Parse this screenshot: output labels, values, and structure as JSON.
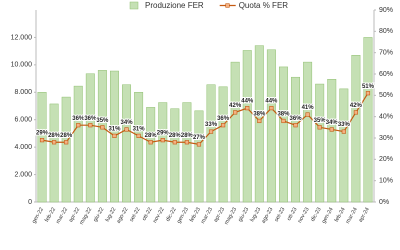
{
  "chart_data": {
    "type": "bar-line",
    "categories": [
      "gen-22",
      "feb-22",
      "mar-22",
      "apr-22",
      "mag-22",
      "giu-22",
      "lug-22",
      "ago-22",
      "set-22",
      "ott-22",
      "nov-22",
      "dic-22",
      "gen-23",
      "feb-23",
      "mar-23",
      "apr-23",
      "mag-23",
      "giu-23",
      "lug-23",
      "ago-23",
      "set-23",
      "ott-23",
      "nov-23",
      "dic-23",
      "gen-24",
      "feb-24",
      "mar-24",
      "apr-24"
    ],
    "series": [
      {
        "name": "Produzione FER",
        "type": "bar",
        "color": "#c5e0b4",
        "values": [
          8000,
          7150,
          7650,
          8450,
          9350,
          9600,
          9550,
          8550,
          8000,
          6900,
          7250,
          6800,
          7250,
          6650,
          8550,
          8400,
          10200,
          11050,
          11400,
          11100,
          9850,
          9100,
          10200,
          8600,
          8950,
          8250,
          10700,
          12000
        ]
      },
      {
        "name": "Quota % FER",
        "type": "line",
        "axis": "y2",
        "color": "#c55a11",
        "values": [
          29,
          28,
          28,
          36,
          36,
          35,
          31,
          34,
          31,
          28,
          29,
          28,
          28,
          27,
          33,
          36,
          42,
          44,
          38,
          44,
          38,
          36,
          41,
          35,
          34,
          33,
          42,
          51
        ],
        "value_labels": [
          "29%",
          "28%",
          "28%",
          "36%",
          "36%",
          "35%",
          "31%",
          "34%",
          "31%",
          "28%",
          "29%",
          "28%",
          "28%",
          "27%",
          "33%",
          "36%",
          "42%",
          "44%",
          "38%",
          "44%",
          "38%",
          "36%",
          "41%",
          "35%",
          "34%",
          "33%",
          "42%",
          "51%"
        ]
      }
    ],
    "ylim": [
      0,
      14000
    ],
    "yticks": [
      {
        "value": 0,
        "label": "0"
      },
      {
        "value": 2000,
        "label": "2.000"
      },
      {
        "value": 4000,
        "label": "4.000"
      },
      {
        "value": 6000,
        "label": "6.000"
      },
      {
        "value": 8000,
        "label": "8.000"
      },
      {
        "value": 10000,
        "label": "10.000"
      },
      {
        "value": 12000,
        "label": "12.000"
      }
    ],
    "y2lim": [
      0,
      90
    ],
    "y2ticks": [
      {
        "value": 0,
        "label": "0%"
      },
      {
        "value": 10,
        "label": "10%"
      },
      {
        "value": 20,
        "label": "20%"
      },
      {
        "value": 30,
        "label": "30%"
      },
      {
        "value": 40,
        "label": "40%"
      },
      {
        "value": 50,
        "label": "50%"
      },
      {
        "value": 60,
        "label": "60%"
      },
      {
        "value": 70,
        "label": "70%"
      },
      {
        "value": 80,
        "label": "80%"
      },
      {
        "value": 90,
        "label": "90%"
      }
    ],
    "legend": "top"
  }
}
